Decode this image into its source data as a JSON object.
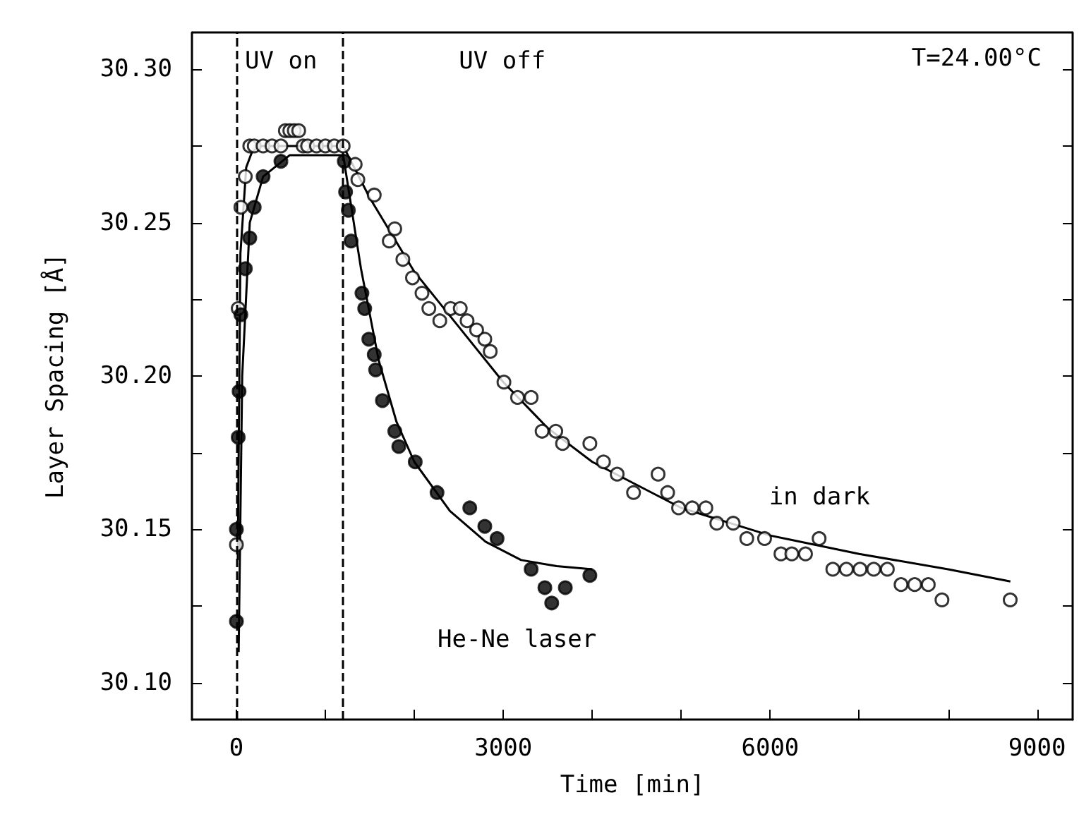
{
  "chart_data": {
    "type": "scatter",
    "xlabel": "Time [min]",
    "ylabel": "Layer Spacing [Å]",
    "xlim": [
      -500,
      9400
    ],
    "ylim": [
      30.088,
      30.312
    ],
    "xticks": [
      0,
      {
        "value": 1000,
        "label": null
      },
      {
        "value": 2000,
        "label": null
      },
      3000,
      {
        "value": 4000,
        "label": null
      },
      {
        "value": 5000,
        "label": null
      },
      6000,
      {
        "value": 7000,
        "label": null
      },
      {
        "value": 8000,
        "label": null
      },
      9000
    ],
    "yticks": [
      {
        "value": 30.1,
        "label": "30.10"
      },
      {
        "value": 30.125,
        "label": null
      },
      {
        "value": 30.15,
        "label": "30.15"
      },
      {
        "value": 30.175,
        "label": null
      },
      {
        "value": 30.2,
        "label": "30.20"
      },
      {
        "value": 30.225,
        "label": null
      },
      {
        "value": 30.25,
        "label": "30.25"
      },
      {
        "value": 30.275,
        "label": null
      },
      {
        "value": 30.3,
        "label": "30.30"
      }
    ],
    "grid": false,
    "marker": "circle",
    "ref_lines": [
      {
        "axis": "x",
        "value": 0,
        "line_style": "dashed",
        "color": "#000000"
      },
      {
        "axis": "x",
        "value": 1200,
        "line_style": "dashed",
        "color": "#000000"
      }
    ],
    "annotations": [
      "UV on",
      "UV off",
      "T=24.00°C"
    ],
    "series": [
      {
        "name": "in dark",
        "color": "#ffffff",
        "x": [
          0,
          20,
          50,
          100,
          150,
          200,
          300,
          400,
          500,
          550,
          600,
          650,
          700,
          750,
          800,
          900,
          1000,
          1100,
          1200,
          1335,
          1365,
          1549,
          1718,
          1780,
          1871,
          1979,
          2086,
          2163,
          2286,
          2408,
          2516,
          2593,
          2700,
          2792,
          2853,
          3007,
          3160,
          3313,
          3436,
          3590,
          3666,
          3973,
          4126,
          4280,
          4464,
          4740,
          4847,
          4970,
          5124,
          5277,
          5400,
          5584,
          5737,
          5937,
          6121,
          6243,
          6397,
          6550,
          6704,
          6857,
          7010,
          7164,
          7317,
          7471,
          7624,
          7777,
          7931,
          8698
        ],
        "values": [
          30.145,
          30.222,
          30.255,
          30.265,
          30.275,
          30.275,
          30.275,
          30.275,
          30.275,
          30.28,
          30.28,
          30.28,
          30.28,
          30.275,
          30.275,
          30.275,
          30.275,
          30.275,
          30.275,
          30.269,
          30.264,
          30.259,
          30.244,
          30.248,
          30.238,
          30.232,
          30.227,
          30.222,
          30.218,
          30.222,
          30.222,
          30.218,
          30.215,
          30.212,
          30.208,
          30.198,
          30.193,
          30.193,
          30.182,
          30.182,
          30.178,
          30.178,
          30.172,
          30.168,
          30.162,
          30.168,
          30.162,
          30.157,
          30.157,
          30.157,
          30.152,
          30.152,
          30.147,
          30.147,
          30.142,
          30.142,
          30.142,
          30.147,
          30.137,
          30.137,
          30.137,
          30.137,
          30.137,
          30.132,
          30.132,
          30.132,
          30.127,
          30.127
        ]
      },
      {
        "name": "He-Ne laser",
        "color": "#000000",
        "x": [
          0,
          0,
          20,
          30,
          50,
          100,
          150,
          200,
          300,
          500,
          1212,
          1227,
          1258,
          1289,
          1411,
          1442,
          1488,
          1549,
          1565,
          1641,
          1780,
          1825,
          2010,
          2255,
          2623,
          2792,
          2930,
          3313,
          3467,
          3544,
          3697,
          3973
        ],
        "values": [
          30.12,
          30.15,
          30.18,
          30.195,
          30.22,
          30.235,
          30.245,
          30.255,
          30.265,
          30.27,
          30.27,
          30.26,
          30.254,
          30.244,
          30.227,
          30.222,
          30.212,
          30.207,
          30.202,
          30.192,
          30.182,
          30.177,
          30.172,
          30.162,
          30.157,
          30.151,
          30.147,
          30.137,
          30.131,
          30.126,
          30.131,
          30.135
        ]
      },
      {
        "type": "line",
        "color": "#000000",
        "marker": "none",
        "x": [
          15,
          45,
          110,
          200,
          1200,
          1500,
          2000,
          2500,
          3000,
          3500,
          4000,
          5000,
          6000,
          7000,
          8000,
          8700
        ],
        "values": [
          30.14,
          30.24,
          30.268,
          30.275,
          30.275,
          30.258,
          30.234,
          30.216,
          30.198,
          30.183,
          30.172,
          30.157,
          30.148,
          30.142,
          30.137,
          30.133
        ]
      },
      {
        "type": "line",
        "color": "#000000",
        "marker": "none",
        "x": [
          25,
          65,
          150,
          300,
          600,
          1200,
          1400,
          1600,
          1800,
          2000,
          2400,
          2800,
          3200,
          3600,
          4000
        ],
        "values": [
          30.11,
          30.2,
          30.25,
          30.265,
          30.272,
          30.272,
          30.235,
          30.205,
          30.185,
          30.172,
          30.156,
          30.146,
          30.14,
          30.138,
          30.137
        ]
      }
    ]
  }
}
